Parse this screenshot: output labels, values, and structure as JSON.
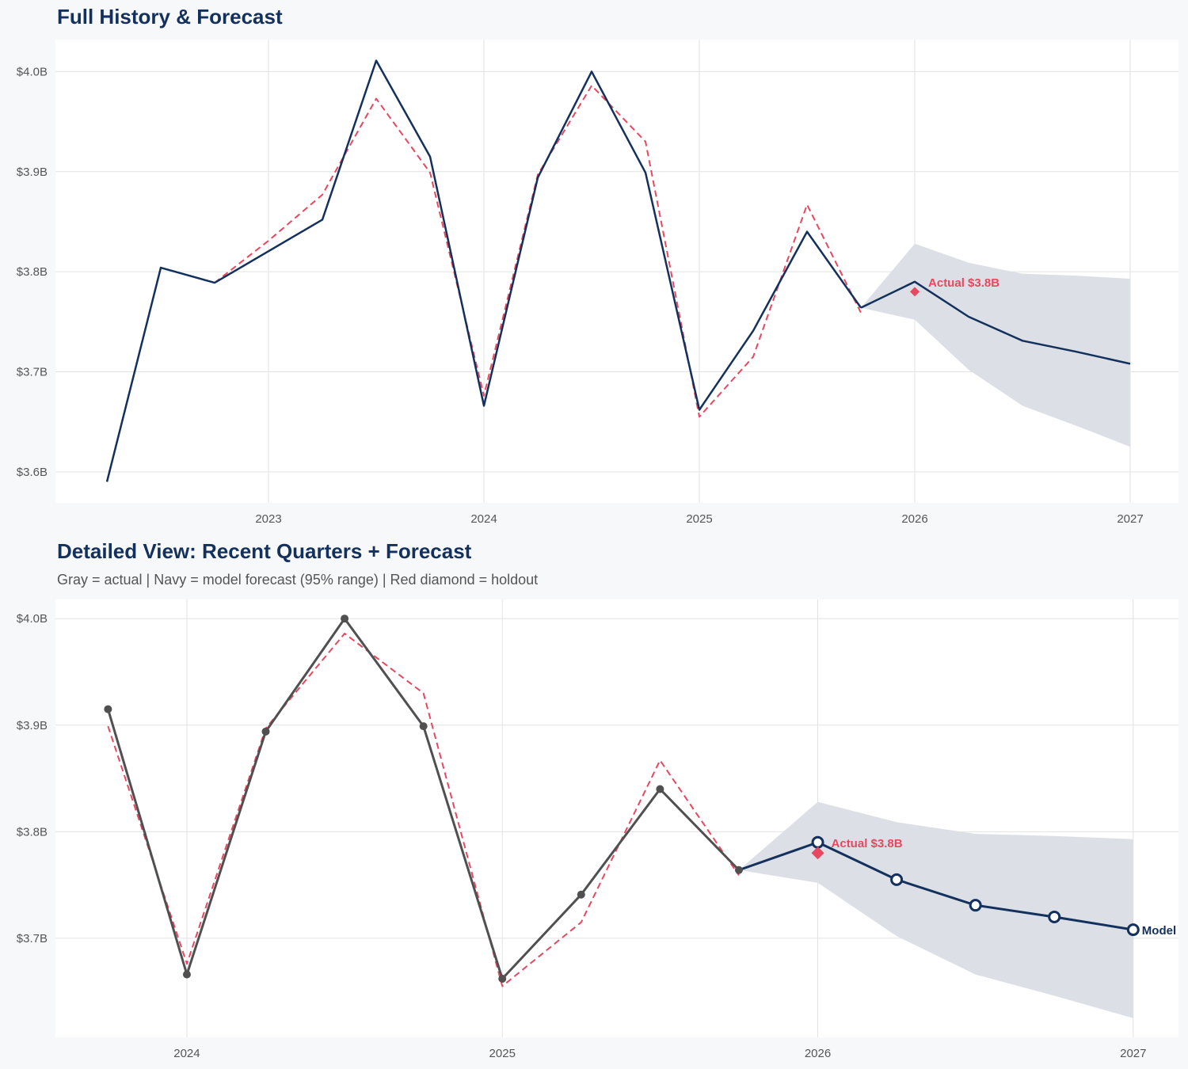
{
  "colors": {
    "navy": "#13315c",
    "red": "#e8475f",
    "gray": "#505050",
    "band": "#dce0e6",
    "grid": "#e2e2e2",
    "panel": "#ffffff",
    "background": "#f7f8fa"
  },
  "chart_data": [
    {
      "type": "line",
      "title": "Full History & Forecast",
      "subtitle": "",
      "xlim": [
        "2022-01-05",
        "2027-03-22"
      ],
      "ylim": [
        3.569,
        4.032
      ],
      "x_ticks": [
        {
          "date": "2023-01-01",
          "label": "2023"
        },
        {
          "date": "2024-01-01",
          "label": "2024"
        },
        {
          "date": "2025-01-01",
          "label": "2025"
        },
        {
          "date": "2026-01-01",
          "label": "2026"
        },
        {
          "date": "2027-01-01",
          "label": "2027"
        }
      ],
      "y_ticks": [
        {
          "value": 3.6,
          "label": "$3.6B"
        },
        {
          "value": 3.7,
          "label": "$3.7B"
        },
        {
          "value": 3.8,
          "label": "$3.8B"
        },
        {
          "value": 3.9,
          "label": "$3.9B"
        },
        {
          "value": 4.0,
          "label": "$4.0B"
        }
      ],
      "grid": true,
      "legend": "none",
      "actual": {
        "color": "#13315c",
        "markers": false,
        "x": [
          "2022-04-01",
          "2022-07-01",
          "2022-10-01",
          "2023-04-01",
          "2023-07-01",
          "2023-10-01",
          "2024-01-01",
          "2024-04-01",
          "2024-07-01",
          "2024-10-01",
          "2025-01-01",
          "2025-04-01",
          "2025-07-01",
          "2025-10-01"
        ],
        "y": [
          3.59,
          3.804,
          3.789,
          3.852,
          4.011,
          3.915,
          3.666,
          3.894,
          4.0,
          3.899,
          3.662,
          3.741,
          3.84,
          3.764
        ]
      },
      "fitted": {
        "color": "#e8475f",
        "dashed": true,
        "x": [
          "2022-10-01",
          "2023-01-01",
          "2023-04-01",
          "2023-07-01",
          "2023-10-01",
          "2024-01-01",
          "2024-04-01",
          "2024-07-01",
          "2024-10-01",
          "2025-01-01",
          "2025-04-01",
          "2025-07-01",
          "2025-10-01"
        ],
        "y": [
          3.789,
          3.831,
          3.877,
          3.973,
          3.899,
          3.676,
          3.897,
          3.986,
          3.93,
          3.655,
          3.715,
          3.867,
          3.759
        ]
      },
      "forecast": {
        "color": "#13315c",
        "markers": false,
        "x": [
          "2025-10-01",
          "2026-01-01",
          "2026-04-01",
          "2026-07-01",
          "2026-10-01",
          "2027-01-01"
        ],
        "y": [
          3.764,
          3.79,
          3.755,
          3.731,
          3.72,
          3.708
        ],
        "upper": [
          3.764,
          3.828,
          3.809,
          3.798,
          3.796,
          3.793
        ],
        "lower": [
          3.764,
          3.752,
          3.702,
          3.666,
          3.646,
          3.625
        ]
      },
      "holdout": {
        "x": "2026-01-01",
        "y": 3.78,
        "label": "Actual $3.8B"
      },
      "end_label": ""
    },
    {
      "type": "line",
      "title": "Detailed View: Recent Quarters + Forecast",
      "subtitle": "Gray = actual  |  Navy = model forecast (95% range)  |  Red diamond = holdout",
      "xlim": [
        "2023-08-01",
        "2027-02-23"
      ],
      "ylim": [
        3.607,
        4.018
      ],
      "x_ticks": [
        {
          "date": "2024-01-01",
          "label": "2024"
        },
        {
          "date": "2025-01-01",
          "label": "2025"
        },
        {
          "date": "2026-01-01",
          "label": "2026"
        },
        {
          "date": "2027-01-01",
          "label": "2027"
        }
      ],
      "y_ticks": [
        {
          "value": 3.7,
          "label": "$3.7B"
        },
        {
          "value": 3.8,
          "label": "$3.8B"
        },
        {
          "value": 3.9,
          "label": "$3.9B"
        },
        {
          "value": 4.0,
          "label": "$4.0B"
        }
      ],
      "grid": true,
      "legend": "none",
      "actual": {
        "color": "#505050",
        "markers": true,
        "x": [
          "2023-10-01",
          "2024-01-01",
          "2024-04-01",
          "2024-07-01",
          "2024-10-01",
          "2025-01-01",
          "2025-04-01",
          "2025-07-01",
          "2025-10-01"
        ],
        "y": [
          3.915,
          3.666,
          3.894,
          4.0,
          3.899,
          3.662,
          3.741,
          3.84,
          3.764
        ]
      },
      "fitted": {
        "color": "#e8475f",
        "dashed": true,
        "x": [
          "2023-10-01",
          "2024-01-01",
          "2024-04-01",
          "2024-07-01",
          "2024-10-01",
          "2025-01-01",
          "2025-04-01",
          "2025-07-01",
          "2025-10-01"
        ],
        "y": [
          3.899,
          3.676,
          3.897,
          3.986,
          3.93,
          3.655,
          3.715,
          3.867,
          3.759
        ]
      },
      "forecast": {
        "color": "#13315c",
        "markers": true,
        "x": [
          "2025-10-01",
          "2026-01-01",
          "2026-04-01",
          "2026-07-01",
          "2026-10-01",
          "2027-01-01"
        ],
        "y": [
          3.764,
          3.79,
          3.755,
          3.731,
          3.72,
          3.708
        ],
        "upper": [
          3.764,
          3.828,
          3.809,
          3.798,
          3.796,
          3.793
        ],
        "lower": [
          3.764,
          3.752,
          3.702,
          3.666,
          3.646,
          3.625
        ]
      },
      "holdout": {
        "x": "2026-01-01",
        "y": 3.78,
        "label": "Actual $3.8B"
      },
      "end_label": "Model"
    }
  ]
}
